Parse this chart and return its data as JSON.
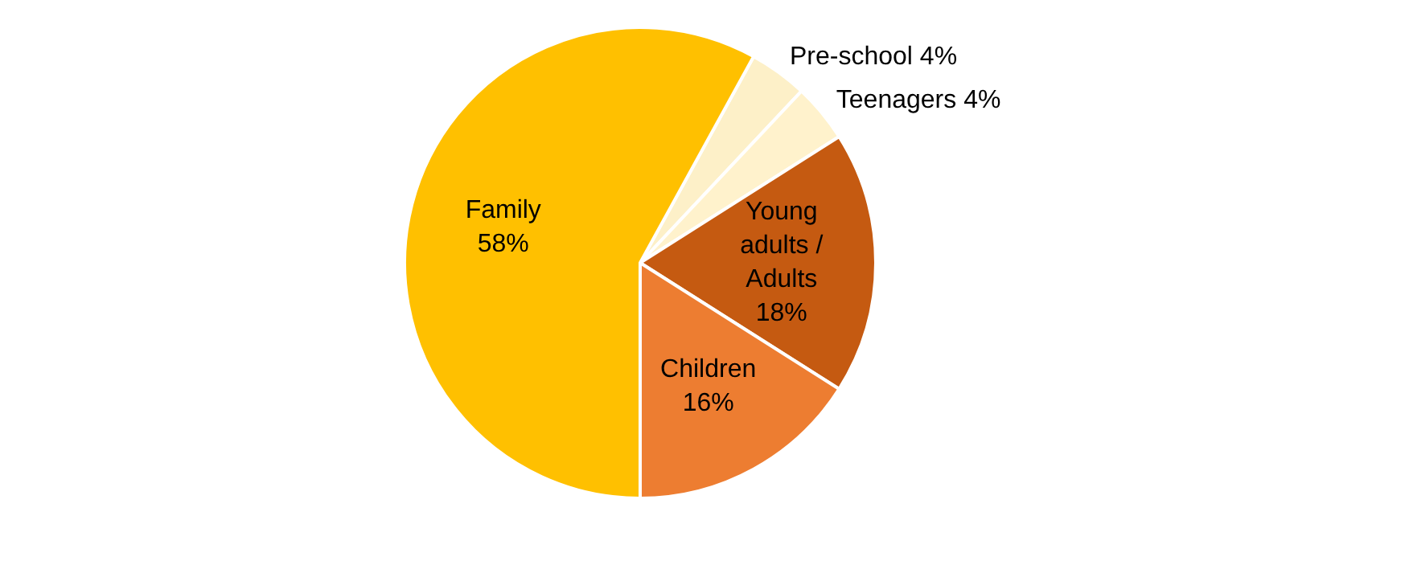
{
  "chart_data": {
    "type": "pie",
    "categories": [
      "Pre-school",
      "Teenagers",
      "Young adults / Adults",
      "Children",
      "Family"
    ],
    "values": [
      4,
      4,
      18,
      16,
      58
    ],
    "colors": [
      "#fdf0c8",
      "#fff2cc",
      "#c55a11",
      "#ed7d31",
      "#ffc000"
    ],
    "value_labels": [
      "4%",
      "4%",
      "18%",
      "16%",
      "58%"
    ],
    "legend": false
  }
}
